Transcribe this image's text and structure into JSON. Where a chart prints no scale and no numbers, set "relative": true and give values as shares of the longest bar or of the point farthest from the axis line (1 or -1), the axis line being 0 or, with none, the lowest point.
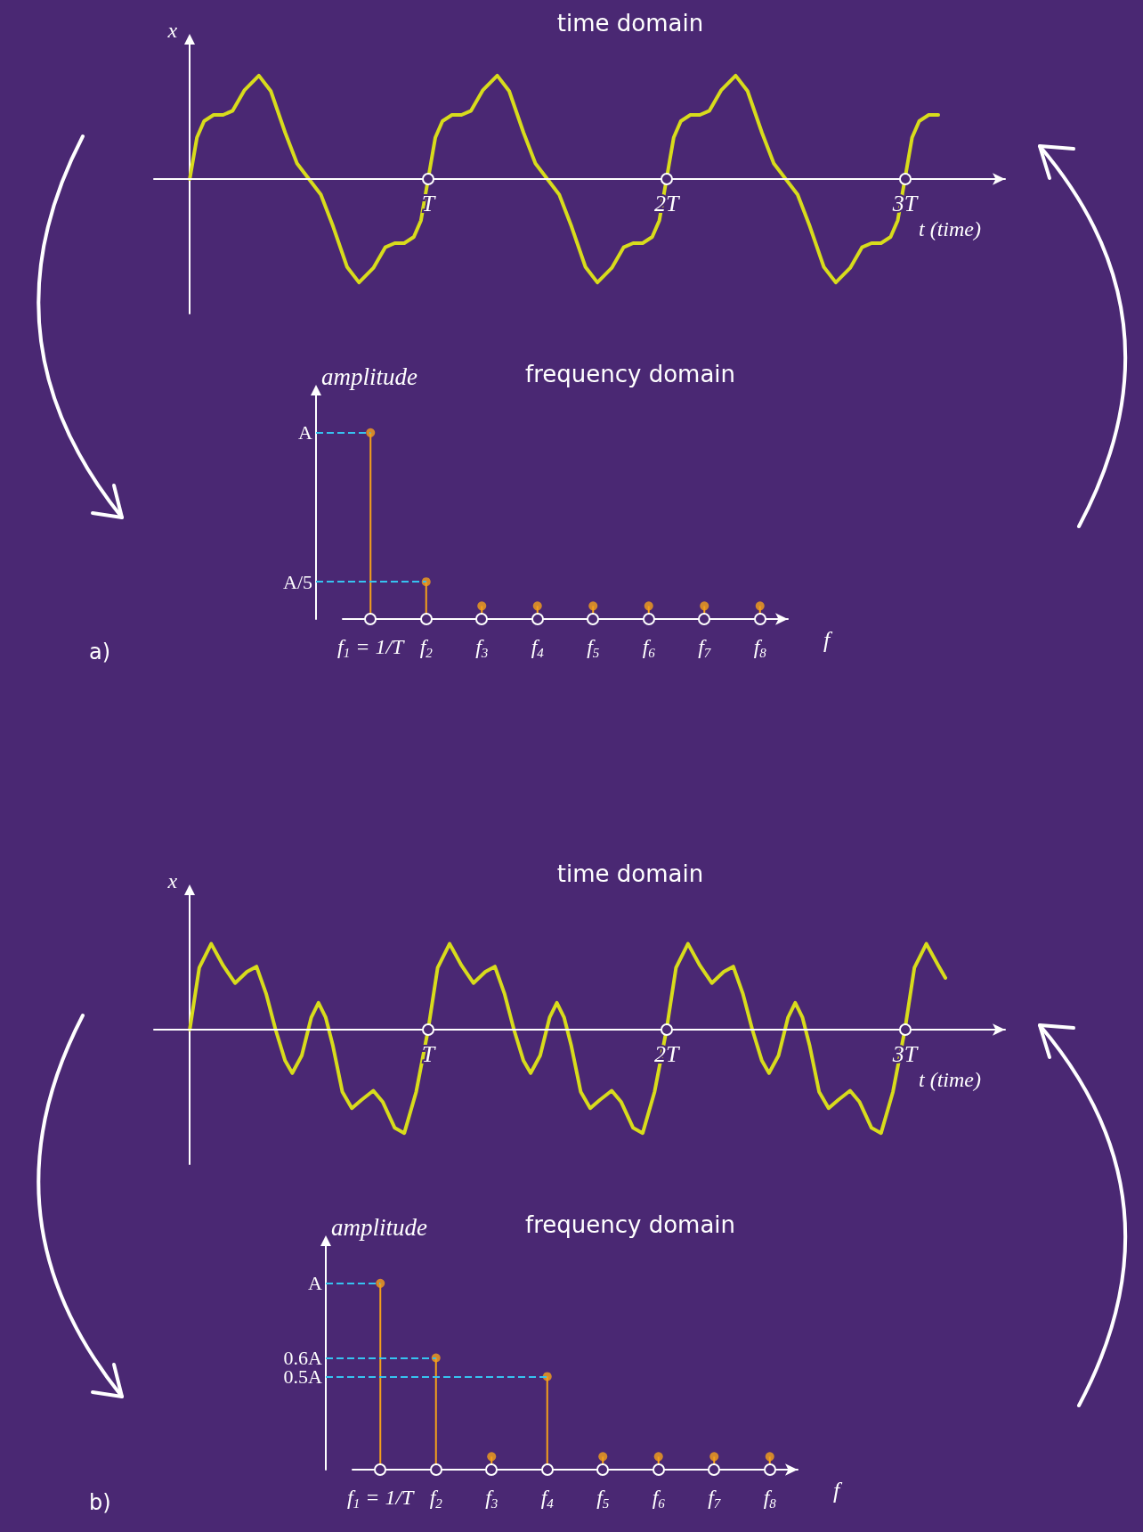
{
  "chart_data": [
    {
      "type": "line",
      "title": "time domain",
      "ylabel": "x",
      "xlabel": "t (time)",
      "relative": true,
      "color": "#d8dc1c",
      "marker": "none",
      "tick_labels": "x",
      "xlim": [
        -0.15,
        3.42
      ],
      "xticks": [
        {
          "value": 1,
          "label": "T"
        },
        {
          "value": 2,
          "label": "2T"
        },
        {
          "value": 3,
          "label": "3T"
        }
      ],
      "x": [
        0,
        0.03,
        0.06,
        0.1,
        0.14,
        0.18,
        0.23,
        0.29,
        0.34,
        0.4,
        0.45,
        0.5,
        0.55,
        0.6,
        0.66,
        0.71,
        0.77,
        0.82,
        0.86,
        0.9,
        0.94,
        0.97,
        1,
        1.03,
        1.06,
        1.1,
        1.14,
        1.18,
        1.23,
        1.29,
        1.34,
        1.4,
        1.45,
        1.5,
        1.55,
        1.6,
        1.66,
        1.71,
        1.77,
        1.82,
        1.86,
        1.9,
        1.94,
        1.97,
        2,
        2.03,
        2.06,
        2.1,
        2.14,
        2.18,
        2.23,
        2.29,
        2.34,
        2.4,
        2.45,
        2.5,
        2.55,
        2.6,
        2.66,
        2.71,
        2.77,
        2.82,
        2.86,
        2.9,
        2.94,
        2.97,
        3,
        3.03,
        3.06,
        3.1,
        3.14
      ],
      "values": [
        0,
        0.4,
        0.56,
        0.62,
        0.62,
        0.66,
        0.86,
        1,
        0.85,
        0.45,
        0.15,
        0,
        -0.15,
        -0.45,
        -0.85,
        -1,
        -0.86,
        -0.66,
        -0.62,
        -0.62,
        -0.56,
        -0.4,
        0,
        0.4,
        0.56,
        0.62,
        0.62,
        0.66,
        0.86,
        1,
        0.85,
        0.45,
        0.15,
        0,
        -0.15,
        -0.45,
        -0.85,
        -1,
        -0.86,
        -0.66,
        -0.62,
        -0.62,
        -0.56,
        -0.4,
        0,
        0.4,
        0.56,
        0.62,
        0.62,
        0.66,
        0.86,
        1,
        0.85,
        0.45,
        0.15,
        0,
        -0.15,
        -0.45,
        -0.85,
        -1,
        -0.86,
        -0.66,
        -0.62,
        -0.62,
        -0.56,
        -0.4,
        0,
        0.4,
        0.56,
        0.62,
        0.62
      ]
    },
    {
      "type": "lollipop",
      "title": "frequency domain",
      "ylabel": "amplitude",
      "xlabel": "f",
      "color": "#f5a01a",
      "categories": [
        "f$_{1}$ = 1/T",
        "f$_{2}$",
        "f$_{3}$",
        "f$_{4}$",
        "f$_{5}$",
        "f$_{6}$",
        "f$_{7}$",
        "f$_{8}$"
      ],
      "values": [
        1,
        0.2,
        0.07,
        0.07,
        0.07,
        0.07,
        0.07,
        0.07
      ],
      "relative": true,
      "ref_lines": [
        {
          "axis": "y",
          "value": 1,
          "label": "A",
          "color": "#36c3f0",
          "line_style": "dashed"
        },
        {
          "axis": "y",
          "value": 0.2,
          "label": "A/5",
          "color": "#36c3f0",
          "line_style": "dashed"
        }
      ],
      "annotations": [
        "a)"
      ]
    },
    {
      "type": "line",
      "title": "time domain",
      "ylabel": "x",
      "xlabel": "t (time)",
      "relative": true,
      "color": "#d8dc1c",
      "marker": "none",
      "tick_labels": "x",
      "xlim": [
        -0.15,
        3.42
      ],
      "xticks": [
        {
          "value": 1,
          "label": "T"
        },
        {
          "value": 2,
          "label": "2T"
        },
        {
          "value": 3,
          "label": "3T"
        }
      ],
      "x": [
        0,
        0.04,
        0.09,
        0.14,
        0.19,
        0.24,
        0.28,
        0.32,
        0.36,
        0.4,
        0.43,
        0.47,
        0.51,
        0.54,
        0.57,
        0.6,
        0.64,
        0.68,
        0.72,
        0.77,
        0.81,
        0.86,
        0.9,
        0.95,
        1,
        1.04,
        1.09,
        1.14,
        1.19,
        1.24,
        1.28,
        1.32,
        1.36,
        1.4,
        1.43,
        1.47,
        1.51,
        1.54,
        1.57,
        1.6,
        1.64,
        1.68,
        1.72,
        1.77,
        1.81,
        1.86,
        1.9,
        1.95,
        2,
        2.04,
        2.09,
        2.14,
        2.19,
        2.24,
        2.28,
        2.32,
        2.36,
        2.4,
        2.43,
        2.47,
        2.51,
        2.54,
        2.57,
        2.6,
        2.64,
        2.68,
        2.72,
        2.77,
        2.81,
        2.86,
        2.9,
        2.95,
        3,
        3.04,
        3.09,
        3.14,
        3.17
      ],
      "values": [
        0,
        0.6,
        0.83,
        0.62,
        0.45,
        0.56,
        0.61,
        0.35,
        0,
        -0.3,
        -0.42,
        -0.25,
        0.12,
        0.26,
        0.12,
        -0.15,
        -0.6,
        -0.76,
        -0.68,
        -0.59,
        -0.7,
        -0.95,
        -1,
        -0.6,
        0,
        0.6,
        0.83,
        0.62,
        0.45,
        0.56,
        0.61,
        0.35,
        0,
        -0.3,
        -0.42,
        -0.25,
        0.12,
        0.26,
        0.12,
        -0.15,
        -0.6,
        -0.76,
        -0.68,
        -0.59,
        -0.7,
        -0.95,
        -1,
        -0.6,
        0,
        0.6,
        0.83,
        0.62,
        0.45,
        0.56,
        0.61,
        0.35,
        0,
        -0.3,
        -0.42,
        -0.25,
        0.12,
        0.26,
        0.12,
        -0.15,
        -0.6,
        -0.76,
        -0.68,
        -0.59,
        -0.7,
        -0.95,
        -1,
        -0.6,
        0,
        0.6,
        0.83,
        0.62,
        0.5
      ]
    },
    {
      "type": "lollipop",
      "title": "frequency domain",
      "ylabel": "amplitude",
      "xlabel": "f",
      "color": "#f5a01a",
      "categories": [
        "f$_{1}$ = 1/T",
        "f$_{2}$",
        "f$_{3}$",
        "f$_{4}$",
        "f$_{5}$",
        "f$_{6}$",
        "f$_{7}$",
        "f$_{8}$"
      ],
      "values": [
        1,
        0.6,
        0.07,
        0.5,
        0.07,
        0.07,
        0.07,
        0.07
      ],
      "relative": true,
      "ref_lines": [
        {
          "axis": "y",
          "value": 1,
          "label": "A",
          "color": "#36c3f0",
          "line_style": "dashed"
        },
        {
          "axis": "y",
          "value": 0.6,
          "label": "0.6A",
          "color": "#36c3f0",
          "line_style": "dashed"
        },
        {
          "axis": "y",
          "value": 0.5,
          "label": "0.5A",
          "color": "#36c3f0",
          "line_style": "dashed"
        }
      ],
      "annotations": [
        "b)"
      ]
    }
  ]
}
